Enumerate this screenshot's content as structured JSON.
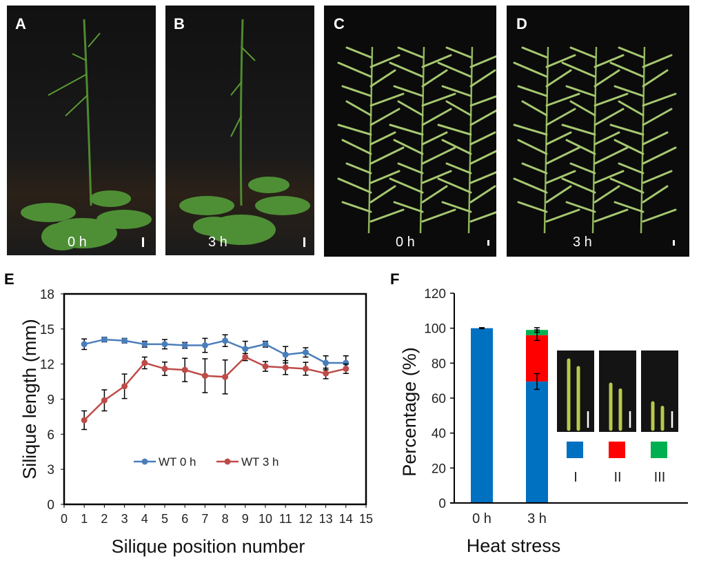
{
  "panels": {
    "A": {
      "letter": "A",
      "time": "0 h"
    },
    "B": {
      "letter": "B",
      "time": "3 h"
    },
    "C": {
      "letter": "C",
      "time": "0 h"
    },
    "D": {
      "letter": "D",
      "time": "3 h"
    },
    "E": {
      "letter": "E"
    },
    "F": {
      "letter": "F"
    }
  },
  "chart_data": [
    {
      "type": "line",
      "xlabel": "Silique position number",
      "ylabel": "Silique  length (mm)",
      "xlim": [
        0,
        15
      ],
      "ylim": [
        0,
        18
      ],
      "xticks": [
        0,
        1,
        2,
        3,
        4,
        5,
        6,
        7,
        8,
        9,
        10,
        11,
        12,
        13,
        14,
        15
      ],
      "yticks": [
        0,
        3,
        6,
        9,
        12,
        15,
        18
      ],
      "legend_position": "bottom-center",
      "x": [
        1,
        2,
        3,
        4,
        5,
        6,
        7,
        8,
        9,
        10,
        11,
        12,
        13,
        14
      ],
      "series": [
        {
          "name": "WT 0 h",
          "color": "#4a7ebb",
          "values": [
            13.7,
            14.1,
            14.0,
            13.7,
            13.7,
            13.6,
            13.6,
            14.0,
            13.3,
            13.7,
            12.8,
            13.0,
            12.1,
            12.1
          ],
          "errors": [
            0.45,
            0.2,
            0.2,
            0.25,
            0.4,
            0.25,
            0.6,
            0.5,
            0.65,
            0.25,
            0.7,
            0.4,
            0.6,
            0.6
          ]
        },
        {
          "name": "WT 3 h",
          "color": "#be4b48",
          "values": [
            7.2,
            8.9,
            10.1,
            12.1,
            11.6,
            11.5,
            11.0,
            10.9,
            12.6,
            11.8,
            11.7,
            11.6,
            11.2,
            11.6
          ],
          "errors": [
            0.8,
            0.9,
            1.05,
            0.5,
            0.57,
            1.0,
            1.45,
            1.45,
            0.3,
            0.42,
            0.6,
            0.55,
            0.45,
            0.4
          ]
        }
      ]
    },
    {
      "type": "bar",
      "stacked": true,
      "xlabel": "Heat stress",
      "ylabel": "Percentage (%)",
      "ylim": [
        0,
        120
      ],
      "yticks": [
        0,
        20,
        40,
        60,
        80,
        100,
        120
      ],
      "categories": [
        "0 h",
        "3 h"
      ],
      "series": [
        {
          "name": "I",
          "color": "#0070c0",
          "values": [
            100,
            69.5
          ],
          "errors": [
            0.3,
            4.5
          ]
        },
        {
          "name": "II",
          "color": "#ff0000",
          "values": [
            0,
            26.5
          ],
          "errors": [
            0,
            3
          ]
        },
        {
          "name": "III",
          "color": "#00b050",
          "values": [
            0,
            3
          ],
          "errors": [
            0,
            1.3
          ]
        }
      ]
    }
  ]
}
